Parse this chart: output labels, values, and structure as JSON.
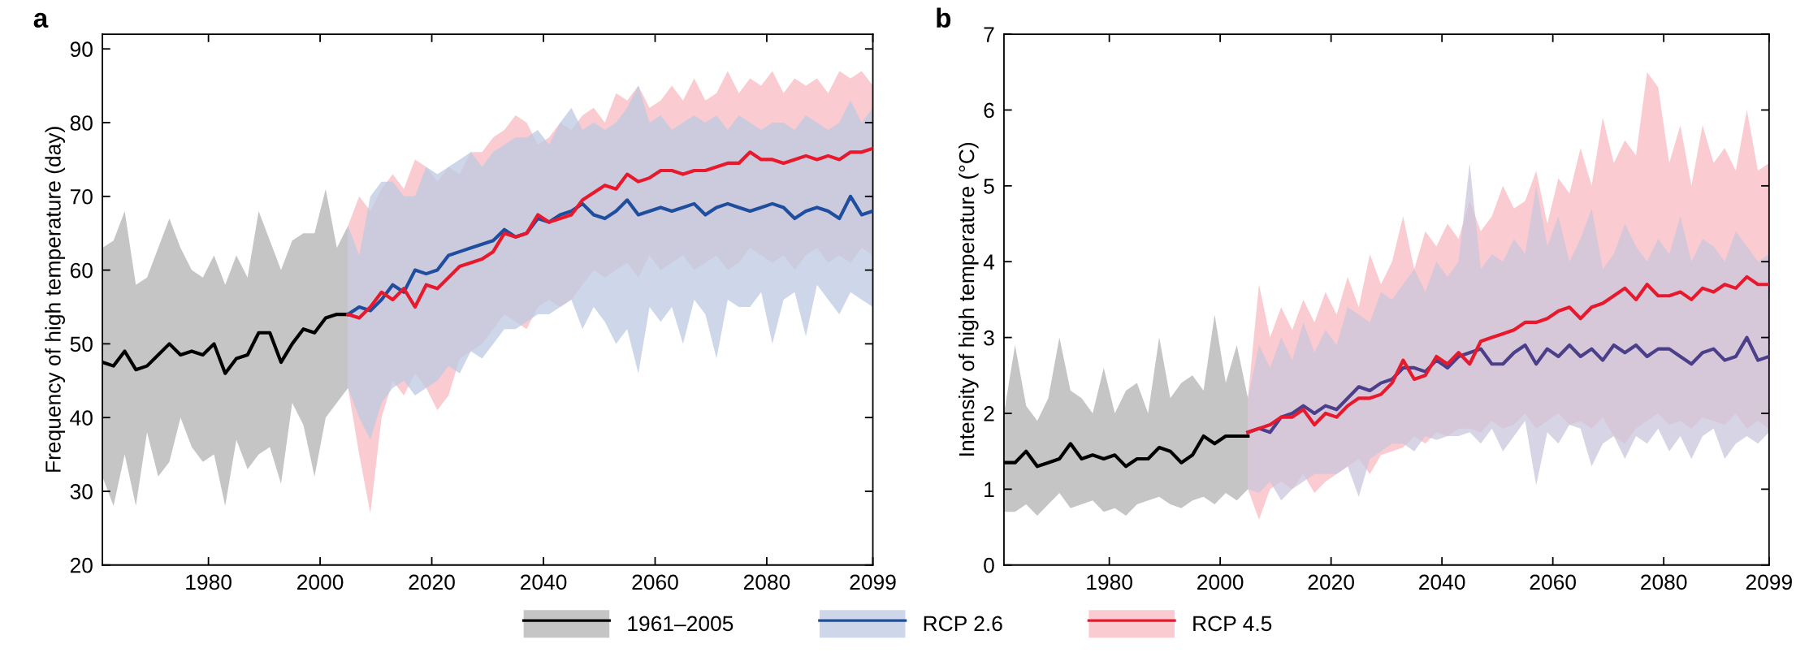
{
  "chart_data": [
    {
      "type": "line",
      "title": "a",
      "ylabel": "Frequency of high temperature (day)",
      "xlim": [
        1961,
        2099
      ],
      "xticks": [
        1980,
        2000,
        2020,
        2040,
        2060,
        2080,
        2099
      ],
      "ylim": [
        20,
        92
      ],
      "yticks": [
        20,
        30,
        40,
        50,
        60,
        70,
        80,
        90
      ],
      "legend": "bottom",
      "series": [
        {
          "name": "1961–2005",
          "color": "#000000",
          "x": [
            1961,
            1963,
            1965,
            1967,
            1969,
            1971,
            1973,
            1975,
            1977,
            1979,
            1981,
            1983,
            1985,
            1987,
            1989,
            1991,
            1993,
            1995,
            1997,
            1999,
            2001,
            2003,
            2005
          ],
          "values": [
            47.5,
            47,
            49,
            46.5,
            47,
            48.5,
            50,
            48.5,
            49,
            48.5,
            50,
            46,
            48,
            48.5,
            51.5,
            51.5,
            47.5,
            50,
            52,
            51.5,
            53.5,
            54,
            54
          ],
          "upper": [
            63,
            64,
            68,
            58,
            59,
            63,
            67,
            63,
            60,
            59,
            62,
            58,
            62,
            59,
            68,
            64,
            60,
            64,
            65,
            65,
            71,
            63,
            66
          ],
          "lower": [
            32,
            28,
            35,
            28,
            38,
            32,
            34,
            40,
            36,
            34,
            35,
            28,
            37,
            33,
            35,
            36,
            31,
            42,
            39,
            32,
            40,
            42,
            44
          ]
        },
        {
          "name": "RCP 2.6",
          "color": "#1f4e9e",
          "x": [
            2005,
            2007,
            2009,
            2011,
            2013,
            2015,
            2017,
            2019,
            2021,
            2023,
            2025,
            2027,
            2029,
            2031,
            2033,
            2035,
            2037,
            2039,
            2041,
            2043,
            2045,
            2047,
            2049,
            2051,
            2053,
            2055,
            2057,
            2059,
            2061,
            2063,
            2065,
            2067,
            2069,
            2071,
            2073,
            2075,
            2077,
            2079,
            2081,
            2083,
            2085,
            2087,
            2089,
            2091,
            2093,
            2095,
            2097,
            2099
          ],
          "values": [
            54,
            55,
            54.5,
            56,
            58,
            57,
            60,
            59.5,
            60,
            62,
            62.5,
            63,
            63.5,
            64,
            65.5,
            64.5,
            65,
            67,
            66.5,
            67.5,
            68,
            69,
            67.5,
            67,
            68,
            69.5,
            67.5,
            68,
            68.5,
            68,
            68.5,
            69,
            67.5,
            68.5,
            69,
            68.5,
            68,
            68.5,
            69,
            68.5,
            67,
            68,
            68.5,
            68,
            67,
            70,
            67.5,
            68
          ],
          "upper": [
            66,
            62,
            70,
            72,
            72,
            70,
            70,
            74,
            73,
            74,
            75,
            76,
            74,
            76,
            77,
            78,
            78,
            79,
            77,
            80,
            82,
            79,
            80,
            79,
            80,
            82,
            85,
            80,
            81,
            79,
            80,
            81,
            80,
            81,
            79,
            81,
            80,
            79,
            80,
            80,
            79,
            81,
            80,
            79,
            80,
            83,
            80,
            82
          ],
          "lower": [
            44,
            40,
            37,
            42,
            44,
            45,
            43,
            44,
            45,
            47,
            46,
            49,
            48,
            50,
            52,
            52,
            53,
            54,
            54,
            55,
            56,
            52,
            55,
            53,
            50,
            52,
            46,
            55,
            53,
            55,
            50,
            56,
            54,
            48,
            56,
            55,
            55,
            57,
            50,
            56,
            57,
            51,
            58,
            56,
            54,
            57,
            56,
            55
          ]
        },
        {
          "name": "RCP 4.5",
          "color": "#e8192c",
          "x": [
            2005,
            2007,
            2009,
            2011,
            2013,
            2015,
            2017,
            2019,
            2021,
            2023,
            2025,
            2027,
            2029,
            2031,
            2033,
            2035,
            2037,
            2039,
            2041,
            2043,
            2045,
            2047,
            2049,
            2051,
            2053,
            2055,
            2057,
            2059,
            2061,
            2063,
            2065,
            2067,
            2069,
            2071,
            2073,
            2075,
            2077,
            2079,
            2081,
            2083,
            2085,
            2087,
            2089,
            2091,
            2093,
            2095,
            2097,
            2099
          ],
          "values": [
            54,
            53.5,
            55,
            57,
            56,
            57.5,
            55,
            58,
            57.5,
            59,
            60.5,
            61,
            61.5,
            62.5,
            65,
            64.5,
            65,
            67.5,
            66.5,
            67,
            67.5,
            69.5,
            70.5,
            71.5,
            71,
            73,
            72,
            72.5,
            73.5,
            73.5,
            73,
            73.5,
            73.5,
            74,
            74.5,
            74.5,
            76,
            75,
            75,
            74.5,
            75,
            75.5,
            75,
            75.5,
            75,
            76,
            76,
            76.5
          ],
          "upper": [
            66,
            70,
            68,
            71,
            73,
            71,
            75,
            74,
            72,
            74,
            73,
            76,
            76,
            78,
            79,
            81,
            80,
            77,
            78,
            80,
            79,
            81,
            82,
            80,
            84,
            83,
            85,
            82,
            83,
            85,
            83,
            86,
            83,
            84,
            87,
            84,
            86,
            85,
            87,
            84,
            86,
            85,
            86,
            84,
            87,
            86,
            87,
            85
          ],
          "lower": [
            44,
            35,
            27,
            40,
            45,
            43,
            46,
            44,
            41,
            43,
            48,
            49,
            50,
            52,
            54,
            53,
            52,
            55,
            56,
            55,
            56,
            58,
            60,
            59,
            60,
            61,
            59,
            62,
            60,
            61,
            62,
            60,
            61,
            62,
            60,
            61,
            63,
            62,
            61,
            62,
            60,
            62,
            63,
            61,
            62,
            61,
            63,
            62
          ]
        }
      ]
    },
    {
      "type": "line",
      "title": "b",
      "ylabel": "Intensity of high temperature (°C)",
      "xlim": [
        1961,
        2099
      ],
      "xticks": [
        1980,
        2000,
        2020,
        2040,
        2060,
        2080,
        2099
      ],
      "ylim": [
        0,
        7
      ],
      "yticks": [
        0,
        1,
        2,
        3,
        4,
        5,
        6,
        7
      ],
      "series": [
        {
          "color": "#000000",
          "x": [
            1961,
            1963,
            1965,
            1967,
            1969,
            1971,
            1973,
            1975,
            1977,
            1979,
            1981,
            1983,
            1985,
            1987,
            1989,
            1991,
            1993,
            1995,
            1997,
            1999,
            2001,
            2003,
            2005
          ],
          "values": [
            1.35,
            1.35,
            1.5,
            1.3,
            1.35,
            1.4,
            1.6,
            1.4,
            1.45,
            1.4,
            1.45,
            1.3,
            1.4,
            1.4,
            1.55,
            1.5,
            1.35,
            1.45,
            1.7,
            1.6,
            1.7,
            1.7,
            1.7
          ],
          "upper": [
            2.0,
            2.9,
            2.1,
            1.9,
            2.2,
            3.0,
            2.3,
            2.2,
            2.0,
            2.6,
            2.0,
            2.3,
            2.4,
            2.0,
            3.0,
            2.2,
            2.4,
            2.5,
            2.3,
            3.3,
            2.4,
            2.9,
            2.2
          ],
          "lower": [
            0.7,
            0.7,
            0.8,
            0.65,
            0.8,
            0.95,
            0.75,
            0.8,
            0.85,
            0.7,
            0.75,
            0.65,
            0.8,
            0.85,
            0.9,
            0.8,
            0.75,
            0.85,
            0.9,
            0.8,
            0.95,
            0.85,
            1.0
          ]
        },
        {
          "color": "#4b3f8a",
          "x": [
            2005,
            2007,
            2009,
            2011,
            2013,
            2015,
            2017,
            2019,
            2021,
            2023,
            2025,
            2027,
            2029,
            2031,
            2033,
            2035,
            2037,
            2039,
            2041,
            2043,
            2045,
            2047,
            2049,
            2051,
            2053,
            2055,
            2057,
            2059,
            2061,
            2063,
            2065,
            2067,
            2069,
            2071,
            2073,
            2075,
            2077,
            2079,
            2081,
            2083,
            2085,
            2087,
            2089,
            2091,
            2093,
            2095,
            2097,
            2099
          ],
          "values": [
            1.75,
            1.8,
            1.75,
            1.95,
            2.0,
            2.1,
            2.0,
            2.1,
            2.05,
            2.2,
            2.35,
            2.3,
            2.4,
            2.45,
            2.6,
            2.6,
            2.55,
            2.7,
            2.6,
            2.75,
            2.8,
            2.85,
            2.65,
            2.65,
            2.8,
            2.9,
            2.65,
            2.85,
            2.75,
            2.9,
            2.75,
            2.85,
            2.7,
            2.9,
            2.8,
            2.9,
            2.75,
            2.85,
            2.85,
            2.75,
            2.65,
            2.8,
            2.85,
            2.7,
            2.75,
            3.0,
            2.7,
            2.75
          ],
          "upper": [
            2.2,
            2.9,
            2.6,
            3.0,
            2.7,
            3.2,
            2.8,
            3.1,
            2.9,
            3.4,
            3.3,
            3.2,
            3.6,
            3.5,
            3.7,
            3.9,
            3.6,
            4.0,
            3.8,
            4.0,
            5.3,
            3.9,
            4.1,
            4.0,
            4.3,
            4.1,
            5.0,
            4.2,
            4.6,
            4.0,
            4.3,
            4.7,
            3.9,
            4.1,
            4.5,
            4.2,
            4.0,
            4.3,
            4.1,
            4.6,
            4.0,
            4.3,
            4.2,
            4.0,
            4.4,
            4.2,
            4.0,
            4.1
          ],
          "lower": [
            1.0,
            0.95,
            1.1,
            0.85,
            1.0,
            1.1,
            1.2,
            1.2,
            1.2,
            1.3,
            0.9,
            1.4,
            1.5,
            1.6,
            1.6,
            1.5,
            1.7,
            1.65,
            1.7,
            1.7,
            1.75,
            1.6,
            1.8,
            1.5,
            1.7,
            1.9,
            1.05,
            1.75,
            1.6,
            1.85,
            1.8,
            1.3,
            1.6,
            1.7,
            1.4,
            1.7,
            1.6,
            1.8,
            1.5,
            1.7,
            1.4,
            1.7,
            1.8,
            1.4,
            1.6,
            1.7,
            1.6,
            1.75
          ]
        },
        {
          "color": "#e8192c",
          "x": [
            2005,
            2007,
            2009,
            2011,
            2013,
            2015,
            2017,
            2019,
            2021,
            2023,
            2025,
            2027,
            2029,
            2031,
            2033,
            2035,
            2037,
            2039,
            2041,
            2043,
            2045,
            2047,
            2049,
            2051,
            2053,
            2055,
            2057,
            2059,
            2061,
            2063,
            2065,
            2067,
            2069,
            2071,
            2073,
            2075,
            2077,
            2079,
            2081,
            2083,
            2085,
            2087,
            2089,
            2091,
            2093,
            2095,
            2097,
            2099
          ],
          "values": [
            1.75,
            1.8,
            1.85,
            1.95,
            1.95,
            2.05,
            1.85,
            2.0,
            1.95,
            2.1,
            2.2,
            2.2,
            2.25,
            2.4,
            2.7,
            2.45,
            2.5,
            2.75,
            2.65,
            2.8,
            2.65,
            2.95,
            3.0,
            3.05,
            3.1,
            3.2,
            3.2,
            3.25,
            3.35,
            3.4,
            3.25,
            3.4,
            3.45,
            3.55,
            3.65,
            3.5,
            3.7,
            3.55,
            3.55,
            3.6,
            3.5,
            3.65,
            3.6,
            3.7,
            3.65,
            3.8,
            3.7,
            3.7
          ],
          "upper": [
            2.2,
            3.7,
            3.0,
            3.4,
            3.1,
            3.5,
            3.2,
            3.6,
            3.3,
            3.8,
            3.4,
            4.1,
            3.7,
            4.0,
            4.6,
            3.9,
            4.4,
            4.2,
            4.5,
            4.3,
            4.8,
            4.4,
            4.6,
            5.0,
            4.7,
            4.8,
            5.2,
            4.5,
            5.1,
            4.9,
            5.5,
            5.0,
            5.9,
            5.3,
            5.6,
            5.4,
            6.5,
            6.3,
            5.3,
            5.8,
            5.0,
            5.8,
            5.3,
            5.5,
            5.2,
            6.0,
            5.2,
            5.3
          ],
          "lower": [
            1.0,
            0.6,
            1.0,
            1.1,
            1.0,
            1.2,
            0.95,
            1.1,
            1.2,
            1.3,
            1.4,
            1.2,
            1.45,
            1.5,
            1.55,
            1.7,
            1.6,
            1.75,
            1.7,
            1.8,
            1.8,
            1.75,
            1.9,
            1.8,
            1.85,
            2.0,
            1.8,
            1.9,
            2.0,
            1.85,
            1.9,
            1.8,
            1.95,
            1.7,
            1.6,
            1.8,
            1.9,
            2.0,
            1.85,
            1.9,
            1.8,
            1.95,
            1.9,
            1.85,
            2.0,
            1.8,
            1.9,
            1.8
          ]
        }
      ]
    }
  ]
}
